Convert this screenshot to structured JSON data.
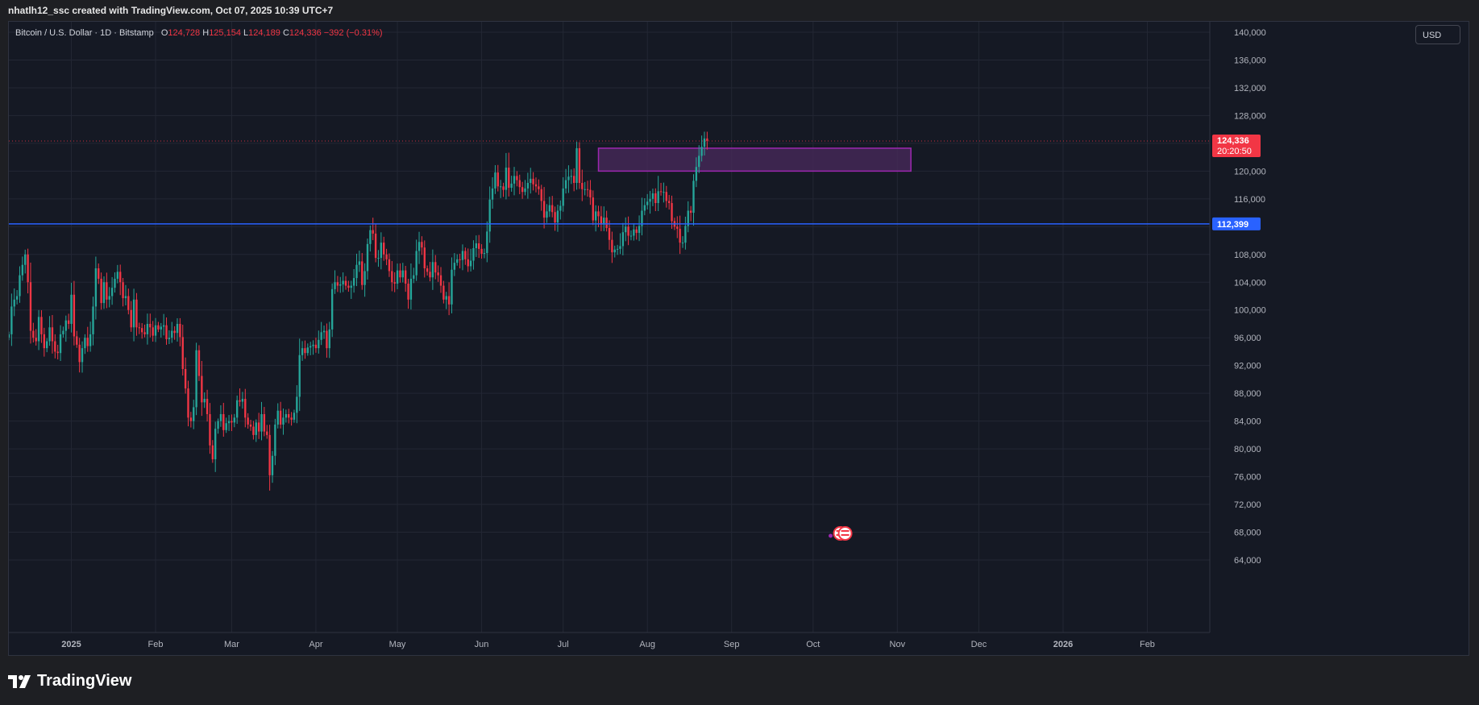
{
  "header": {
    "credit": "nhatlh12_ssc created with TradingView.com, Oct 07, 2025 10:39 UTC+7"
  },
  "legend": {
    "symbol": "Bitcoin / U.S. Dollar · 1D · Bitstamp",
    "o_label": "O",
    "o_value": "124,728",
    "h_label": "H",
    "h_value": "125,154",
    "l_label": "L",
    "l_value": "124,189",
    "c_label": "C",
    "c_value": "124,336",
    "change": "−392 (−0.31%)"
  },
  "currency_button": "USD",
  "brand": "TradingView",
  "colors": {
    "up": "#26a69a",
    "down": "#f23645",
    "grid": "#232734",
    "support_line": "#2962ff",
    "zone_fill": "#4a2a5c",
    "zone_border": "#9c27b0",
    "price_label": "#f23645",
    "support_label": "#2962ff",
    "axis_text": "#b2b5be",
    "background": "#151924"
  },
  "chart_data": {
    "type": "candlestick",
    "title": "Bitcoin / U.S. Dollar · 1D · Bitstamp",
    "ylim": [
      64000,
      140000
    ],
    "y_ticks": [
      {
        "value": 64000,
        "label": "64,000"
      },
      {
        "value": 68000,
        "label": "68,000"
      },
      {
        "value": 72000,
        "label": "72,000"
      },
      {
        "value": 76000,
        "label": "76,000"
      },
      {
        "value": 80000,
        "label": "80,000"
      },
      {
        "value": 84000,
        "label": "84,000"
      },
      {
        "value": 88000,
        "label": "88,000"
      },
      {
        "value": 92000,
        "label": "92,000"
      },
      {
        "value": 96000,
        "label": "96,000"
      },
      {
        "value": 100000,
        "label": "100,000"
      },
      {
        "value": 104000,
        "label": "104,000"
      },
      {
        "value": 108000,
        "label": "108,000"
      },
      {
        "value": 112000,
        "label": ""
      },
      {
        "value": 116000,
        "label": "116,000"
      },
      {
        "value": 120000,
        "label": "120,000"
      },
      {
        "value": 124000,
        "label": ""
      },
      {
        "value": 128000,
        "label": "128,000"
      },
      {
        "value": 132000,
        "label": "132,000"
      },
      {
        "value": 136000,
        "label": "136,000"
      },
      {
        "value": 140000,
        "label": "140,000"
      }
    ],
    "x_start": "2024-12-09",
    "x_end": "2026-02-24",
    "x_ticks": [
      {
        "date": "2025-01-01",
        "label": "2025",
        "bold": true
      },
      {
        "date": "2025-02-01",
        "label": "Feb",
        "bold": false
      },
      {
        "date": "2025-03-01",
        "label": "Mar",
        "bold": false
      },
      {
        "date": "2025-04-01",
        "label": "Apr",
        "bold": false
      },
      {
        "date": "2025-05-01",
        "label": "May",
        "bold": false
      },
      {
        "date": "2025-06-01",
        "label": "Jun",
        "bold": false
      },
      {
        "date": "2025-07-01",
        "label": "Jul",
        "bold": false
      },
      {
        "date": "2025-08-01",
        "label": "Aug",
        "bold": false
      },
      {
        "date": "2025-09-01",
        "label": "Sep",
        "bold": false
      },
      {
        "date": "2025-10-01",
        "label": "Oct",
        "bold": false
      },
      {
        "date": "2025-11-01",
        "label": "Nov",
        "bold": false
      },
      {
        "date": "2025-12-01",
        "label": "Dec",
        "bold": false
      },
      {
        "date": "2026-01-01",
        "label": "2026",
        "bold": true
      },
      {
        "date": "2026-02-01",
        "label": "Feb",
        "bold": false
      }
    ],
    "candles_start": "2024-12-09",
    "closes": [
      96500,
      100500,
      101500,
      102000,
      105000,
      106500,
      108000,
      104000,
      97000,
      96000,
      95500,
      99000,
      96500,
      94500,
      95500,
      97500,
      95500,
      94000,
      93800,
      96500,
      97000,
      98500,
      98000,
      102200,
      96200,
      95000,
      92500,
      94500,
      96000,
      94800,
      96500,
      100500,
      106000,
      104500,
      101000,
      104000,
      101500,
      102000,
      103200,
      104500,
      105500,
      104000,
      101700,
      102000,
      100000,
      97500,
      101500,
      97500,
      97400,
      96800,
      96500,
      98000,
      97500,
      96300,
      97800,
      97200,
      97600,
      97800,
      95800,
      96000,
      97000,
      96700,
      98000,
      96100,
      91500,
      88700,
      84500,
      84000,
      86000,
      94200,
      90500,
      86700,
      87200,
      85000,
      80500,
      78500,
      82900,
      84000,
      85000,
      82700,
      83700,
      84000,
      83800,
      84500,
      87000,
      86800,
      87200,
      84500,
      83500,
      83200,
      82000,
      83800,
      82500,
      85000,
      82500,
      82000,
      76200,
      79000,
      83500,
      85500,
      83500,
      84500,
      85000,
      84500,
      84200,
      85200,
      87500,
      93500,
      94500,
      93800,
      94600,
      94800,
      95000,
      94500,
      95700,
      96800,
      97000,
      94500,
      97200,
      103000,
      104000,
      103500,
      103700,
      104200,
      103500,
      103200,
      103500,
      104600,
      106500,
      107000,
      103600,
      105600,
      109500,
      111500,
      111000,
      107500,
      107500,
      109700,
      108000,
      107300,
      105600,
      104000,
      103800,
      105700,
      104700,
      105700,
      103800,
      101500,
      104500,
      105000,
      108500,
      109800,
      109000,
      106000,
      105500,
      104700,
      106900,
      105400,
      105000,
      103500,
      101500,
      102000,
      100800,
      105800,
      106800,
      107300,
      107200,
      108500,
      107300,
      106300,
      107100,
      108900,
      109600,
      108800,
      108100,
      108200,
      111300,
      115900,
      117500,
      119800,
      117800,
      117800,
      117300,
      120500,
      117600,
      118200,
      119300,
      118700,
      117700,
      117000,
      117500,
      118300,
      118900,
      118100,
      117800,
      117400,
      115700,
      113300,
      114200,
      115100,
      114100,
      112600,
      114300,
      115000,
      117500,
      118700,
      119200,
      119300,
      118300,
      123300,
      118300,
      117400,
      117400,
      117300,
      116200,
      112900,
      114200,
      113500,
      112300,
      113300,
      111800,
      110100,
      108300,
      108700,
      108800,
      109200,
      111200,
      112000,
      110700,
      110700,
      111600,
      111100,
      112100,
      114300,
      115100,
      115600,
      116000,
      116800,
      115400,
      117100,
      117000,
      117000,
      115700,
      115400,
      112800,
      112000,
      111700,
      109700,
      109700,
      112100,
      114300,
      114000,
      118600,
      120600,
      122200,
      123500,
      124700,
      124350
    ]
  },
  "zone": {
    "x_from": "2025-07-14",
    "x_to": "2025-11-06",
    "y_from": 120000,
    "y_to": 123300
  },
  "support": {
    "value": 112399,
    "label": "112,399"
  },
  "last_price": {
    "value": 124336,
    "label": "124,336",
    "countdown": "20:20:50"
  },
  "event_markers": {
    "date": "2025-10-11",
    "count": 2
  }
}
